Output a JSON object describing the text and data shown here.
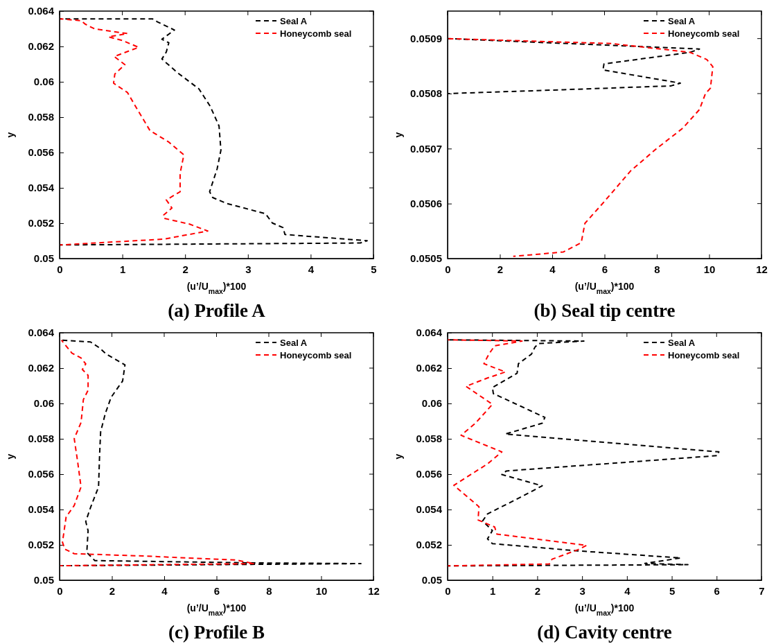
{
  "chart_data": [
    {
      "type": "line",
      "title": "(a) Profile A",
      "xlabel": "(u’/U$_{max}$)*100",
      "ylabel": "y",
      "xlim": [
        0,
        5
      ],
      "xticks": [
        0,
        1,
        2,
        3,
        4,
        5
      ],
      "ylim": [
        0.05,
        0.064
      ],
      "yticks": [
        0.05,
        0.052,
        0.054,
        0.056,
        0.058,
        0.06,
        0.062,
        0.064
      ],
      "grid": false,
      "legend": "top right",
      "line_style": "dashed",
      "marker": "none",
      "series": [
        {
          "name": "Seal A",
          "color": "#000000",
          "x": [
            0.01,
            1.48,
            1.56,
            1.83,
            1.63,
            1.74,
            1.7,
            1.63,
            1.88,
            2.22,
            2.4,
            2.54,
            2.57,
            2.51,
            2.39,
            2.44,
            2.66,
            3.28,
            3.39,
            3.56,
            3.59,
            4.9,
            4.79,
            0.01
          ],
          "values": [
            0.06356,
            0.06356,
            0.06339,
            0.06293,
            0.06241,
            0.06221,
            0.06169,
            0.06129,
            0.06051,
            0.0596,
            0.05861,
            0.0575,
            0.05613,
            0.05508,
            0.05378,
            0.05345,
            0.05312,
            0.05254,
            0.05201,
            0.05175,
            0.05136,
            0.05101,
            0.05088,
            0.05077
          ]
        },
        {
          "name": "Honeycomb seal",
          "color": "#ff0000",
          "x": [
            0.01,
            0.34,
            0.41,
            0.56,
            1.08,
            0.78,
            1.0,
            1.26,
            0.87,
            1.04,
            0.88,
            0.86,
            1.08,
            1.22,
            1.44,
            1.74,
            1.98,
            1.92,
            1.92,
            1.7,
            1.79,
            1.66,
            1.66,
            2.07,
            2.36,
            1.66,
            0.01
          ],
          "values": [
            0.06356,
            0.06346,
            0.06326,
            0.06299,
            0.06273,
            0.06254,
            0.06234,
            0.06195,
            0.06143,
            0.06097,
            0.06044,
            0.05992,
            0.0594,
            0.05855,
            0.05724,
            0.05659,
            0.05587,
            0.05482,
            0.05378,
            0.05332,
            0.05286,
            0.05247,
            0.05228,
            0.05195,
            0.05156,
            0.0511,
            0.05077
          ]
        }
      ]
    },
    {
      "type": "line",
      "title": "(b) Seal tip centre",
      "xlabel": "(u’/U$_{max}$)*100",
      "ylabel": "y",
      "xlim": [
        0,
        12
      ],
      "xticks": [
        0,
        2,
        4,
        6,
        8,
        10,
        12
      ],
      "ylim": [
        0.0505,
        0.05095
      ],
      "yticks": [
        0.0505,
        0.0506,
        0.0507,
        0.0508,
        0.0509
      ],
      "grid": false,
      "legend": "top right",
      "line_style": "dashed",
      "marker": "none",
      "series": [
        {
          "name": "Seal A",
          "color": "#000000",
          "x": [
            0,
            9.63,
            9.27,
            5.98,
            5.94,
            8.9,
            8.54,
            4.43,
            0
          ],
          "values": [
            0.0509,
            0.050881,
            0.050875,
            0.050854,
            0.050843,
            0.050819,
            0.050814,
            0.050807,
            0.0508
          ]
        },
        {
          "name": "Honeycomb seal",
          "color": "#ff0000",
          "x": [
            0,
            6.26,
            9.27,
            9.91,
            10.14,
            10.05,
            9.86,
            9.63,
            8.99,
            7.99,
            6.99,
            5.98,
            5.25,
            5.11,
            4.43,
            2.51
          ],
          "values": [
            0.0509,
            0.050891,
            0.050875,
            0.050862,
            0.050849,
            0.05081,
            0.0508,
            0.050771,
            0.050737,
            0.0507,
            0.050659,
            0.050603,
            0.050564,
            0.050529,
            0.050512,
            0.050504
          ]
        }
      ]
    },
    {
      "type": "line",
      "title": "(c) Profile B",
      "xlabel": "(u’/U$_{max}$)*100",
      "ylabel": "y",
      "xlim": [
        0,
        12
      ],
      "xticks": [
        0,
        2,
        4,
        6,
        8,
        10,
        12
      ],
      "ylim": [
        0.05,
        0.064
      ],
      "yticks": [
        0.05,
        0.052,
        0.054,
        0.056,
        0.058,
        0.06,
        0.062,
        0.064
      ],
      "grid": false,
      "legend": "top right",
      "line_style": "dashed",
      "marker": "none",
      "series": [
        {
          "name": "Seal A",
          "color": "#000000",
          "x": [
            0.07,
            1.18,
            1.52,
            1.78,
            2.5,
            2.41,
            1.97,
            1.75,
            1.57,
            1.53,
            1.49,
            1.18,
            1.0,
            1.09,
            1.04,
            1.35,
            7.37,
            11.52,
            0.07
          ],
          "values": [
            0.06358,
            0.06348,
            0.06315,
            0.0628,
            0.06218,
            0.06127,
            0.06035,
            0.05944,
            0.0584,
            0.0571,
            0.05528,
            0.0541,
            0.05332,
            0.0528,
            0.05157,
            0.05111,
            0.05098,
            0.05094,
            0.05082
          ]
        },
        {
          "name": "Honeycomb seal",
          "color": "#ff0000",
          "x": [
            0.07,
            0.47,
            0.82,
            1.0,
            0.87,
            1.09,
            1.09,
            0.91,
            0.82,
            0.56,
            0.69,
            0.82,
            0.56,
            0.25,
            0.11,
            0.2,
            0.56,
            3.21,
            6.75,
            7.45,
            0.03
          ],
          "values": [
            0.06358,
            0.06285,
            0.06257,
            0.06224,
            0.06192,
            0.06159,
            0.06075,
            0.06022,
            0.05892,
            0.05801,
            0.05671,
            0.05528,
            0.05423,
            0.05358,
            0.05215,
            0.05176,
            0.0515,
            0.05137,
            0.05114,
            0.05094,
            0.05082
          ]
        }
      ]
    },
    {
      "type": "line",
      "title": "(d) Cavity centre",
      "xlabel": "(u’/U$_{max}$)*100",
      "ylabel": "y",
      "xlim": [
        0,
        7
      ],
      "xticks": [
        0,
        1,
        2,
        3,
        4,
        5,
        6,
        7
      ],
      "ylim": [
        0.05,
        0.064
      ],
      "yticks": [
        0.05,
        0.052,
        0.054,
        0.056,
        0.058,
        0.06,
        0.062,
        0.064
      ],
      "grid": false,
      "legend": "top right",
      "line_style": "dashed",
      "marker": "none",
      "series": [
        {
          "name": "Seal A",
          "color": "#000000",
          "x": [
            0.01,
            3.04,
            2.03,
            1.95,
            1.87,
            1.58,
            1.55,
            1.0,
            1.02,
            2.17,
            2.11,
            1.29,
            6.05,
            6.02,
            1.31,
            1.21,
            2.11,
            1.63,
            0.89,
            0.78,
            1.0,
            0.89,
            1.0,
            2.91,
            5.2,
            4.4,
            5.36,
            0.01
          ],
          "values": [
            0.0636,
            0.06353,
            0.06339,
            0.06319,
            0.06279,
            0.06225,
            0.06171,
            0.0609,
            0.06056,
            0.05921,
            0.05888,
            0.05827,
            0.05726,
            0.05705,
            0.05618,
            0.05598,
            0.05534,
            0.0547,
            0.05375,
            0.05335,
            0.05281,
            0.05234,
            0.05207,
            0.05166,
            0.05126,
            0.05095,
            0.05088,
            0.05081
          ]
        },
        {
          "name": "Honeycomb seal",
          "color": "#ff0000",
          "x": [
            0.01,
            1.66,
            1.05,
            0.92,
            0.81,
            1.29,
            0.89,
            0.41,
            1.0,
            0.62,
            0.3,
            1.21,
            0.89,
            0.14,
            0.7,
            0.68,
            1.05,
            1.1,
            3.1,
            2.91,
            2.33,
            2.27,
            0.01
          ],
          "values": [
            0.0636,
            0.06353,
            0.06326,
            0.06279,
            0.06225,
            0.06178,
            0.06144,
            0.06097,
            0.05995,
            0.05888,
            0.0582,
            0.05726,
            0.05658,
            0.05537,
            0.05416,
            0.05341,
            0.05301,
            0.05261,
            0.05197,
            0.05173,
            0.05119,
            0.05092,
            0.05081
          ]
        }
      ]
    }
  ]
}
